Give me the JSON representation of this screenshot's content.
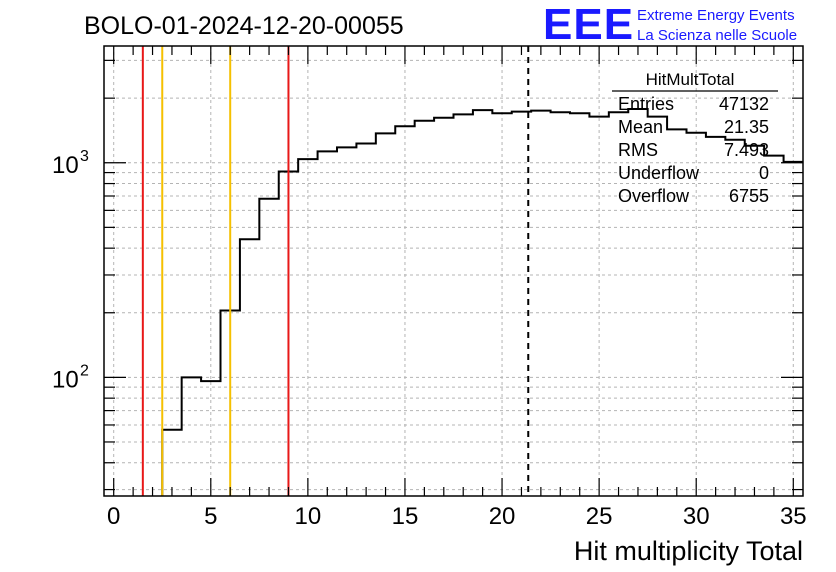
{
  "chart_data": {
    "type": "histogram",
    "title": "BOLO-01-2024-12-20-00055",
    "xlabel": "Hit multiplicity Total",
    "ylabel": "",
    "xlim": [
      -0.5,
      35.5
    ],
    "ylim": [
      28,
      3500
    ],
    "yscale": "log",
    "grid": true,
    "x_ticks": [
      "0",
      "5",
      "10",
      "15",
      "20",
      "25",
      "30",
      "35"
    ],
    "y_tick_labels": [
      {
        "value": 100,
        "base": "10",
        "exp": "2"
      },
      {
        "value": 1000,
        "base": "10",
        "exp": "3"
      }
    ],
    "bin_width": 1,
    "bin_centers": [
      0,
      1,
      2,
      3,
      4,
      5,
      6,
      7,
      8,
      9,
      10,
      11,
      12,
      13,
      14,
      15,
      16,
      17,
      18,
      19,
      20,
      21,
      22,
      23,
      24,
      25,
      26,
      27,
      28,
      29,
      30,
      31,
      32,
      33,
      34,
      35
    ],
    "counts": [
      0,
      0,
      0,
      57,
      100,
      96,
      205,
      440,
      680,
      910,
      1040,
      1130,
      1180,
      1230,
      1370,
      1480,
      1570,
      1620,
      1680,
      1760,
      1700,
      1730,
      1750,
      1720,
      1700,
      1640,
      1720,
      1780,
      1640,
      1430,
      1380,
      1320,
      1280,
      1200,
      1080,
      1010
    ],
    "reference_lines": [
      {
        "x": 1.5,
        "color": "#e81818",
        "style": "solid"
      },
      {
        "x": 2.5,
        "color": "#f5c000",
        "style": "solid"
      },
      {
        "x": 6.0,
        "color": "#f5c000",
        "style": "solid"
      },
      {
        "x": 9.0,
        "color": "#e81818",
        "style": "solid"
      },
      {
        "x": 21.35,
        "color": "#000000",
        "style": "dashed"
      }
    ],
    "stats_box": {
      "title": "HitMultTotal",
      "rows": [
        {
          "label": "Entries",
          "value": "47132"
        },
        {
          "label": "Mean",
          "value": "21.35"
        },
        {
          "label": "RMS",
          "value": "7.493"
        },
        {
          "label": "Underflow",
          "value": "0"
        },
        {
          "label": "Overflow",
          "value": "6755"
        }
      ]
    }
  },
  "logo": {
    "mark": "EEE",
    "line1": "Extreme Energy Events",
    "line2": "La Scienza nelle Scuole",
    "color": "#1a1aff"
  }
}
